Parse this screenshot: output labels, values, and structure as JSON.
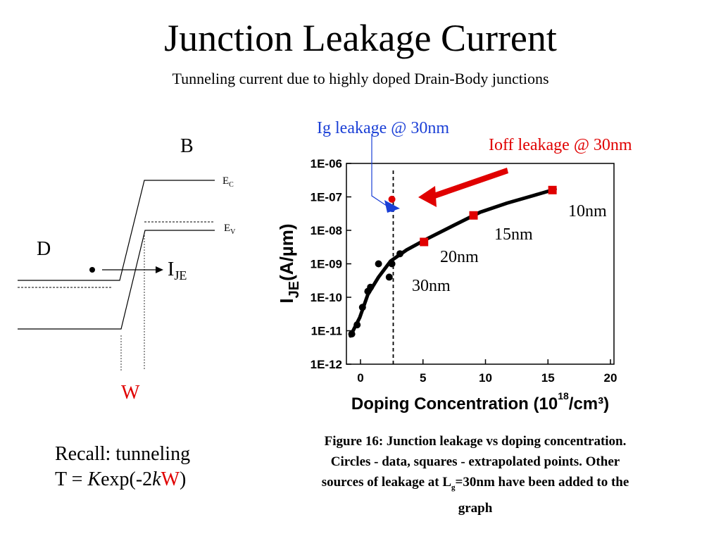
{
  "slide": {
    "title": "Junction Leakage Current",
    "subtitle": "Tunneling current due to highly doped Drain-Body junctions"
  },
  "band_diagram": {
    "label_b": "B",
    "label_d": "D",
    "label_ec": "E",
    "label_ec_sub": "C",
    "label_ev": "E",
    "label_ev_sub": "V",
    "label_current": "I",
    "label_current_sub": "JE",
    "label_w": "W",
    "w_color": "#e00000"
  },
  "recall": {
    "line1": "Recall: tunneling",
    "line2_prefix": "T = ",
    "line2_k": "K",
    "line2_mid": "exp(-2",
    "line2_k2": "k",
    "line2_w": "W",
    "line2_suffix": ")"
  },
  "chart_data": {
    "type": "scatter",
    "xlabel": "Doping Concentration (10",
    "xlabel_exp": "18",
    "xlabel_unit": "/cm³)",
    "ylabel": "I",
    "ylabel_sub": "JE",
    "ylabel_unit": "(A/µm)",
    "xlim": [
      0,
      20
    ],
    "ylim_log10": [
      -12,
      -6
    ],
    "x_ticks": [
      "0",
      "5",
      "10",
      "15",
      "20"
    ],
    "y_ticks": [
      "1E-12",
      "1E-11",
      "1E-10",
      "1E-09",
      "1E-08",
      "1E-07",
      "1E-06"
    ],
    "dashed_line_x": 3.5,
    "series": [
      {
        "marker": "circle",
        "color": "#000000",
        "points": [
          [
            0.4,
            8e-12
          ],
          [
            0.8,
            1.5e-11
          ],
          [
            1.2,
            5e-11
          ],
          [
            1.6,
            1.5e-10
          ],
          [
            1.8,
            2e-10
          ],
          [
            2.4,
            1e-09
          ],
          [
            3.2,
            4e-10
          ],
          [
            3.4,
            1e-09
          ],
          [
            4.0,
            2e-09
          ]
        ]
      },
      {
        "marker": "square",
        "color": "#e00000",
        "points": [
          [
            5.8,
            4.5e-09
          ],
          [
            9.5,
            2.8e-08
          ],
          [
            15.4,
            1.6e-07
          ]
        ]
      },
      {
        "marker": "circle",
        "color": "#e00000",
        "points": [
          [
            3.4,
            8.5e-08
          ]
        ]
      },
      {
        "marker": "circle",
        "color": "#1a3fd6",
        "points": [
          [
            3.4,
            4.5e-08
          ]
        ]
      }
    ],
    "fit_curve": [
      [
        0.3,
        7e-12
      ],
      [
        1.0,
        2.5e-11
      ],
      [
        1.6,
        1.2e-10
      ],
      [
        2.4,
        4e-10
      ],
      [
        3.3,
        1.2e-09
      ],
      [
        4.5,
        2.6e-09
      ],
      [
        6,
        5.5e-09
      ],
      [
        8,
        1.4e-08
      ],
      [
        10,
        3.5e-08
      ],
      [
        12,
        6.5e-08
      ],
      [
        14,
        1.1e-07
      ],
      [
        15.6,
        1.7e-07
      ]
    ],
    "annotations": [
      {
        "text": "Ig leakage @ 30nm",
        "color": "#1a3fd6"
      },
      {
        "text": "Ioff leakage @ 30nm",
        "color": "#e00000"
      },
      {
        "text": "10nm",
        "color": "#000000"
      },
      {
        "text": "15nm",
        "color": "#000000"
      },
      {
        "text": "20nm",
        "color": "#000000"
      },
      {
        "text": "30nm",
        "color": "#000000"
      }
    ]
  },
  "caption": {
    "line1": "Figure 16: Junction leakage vs doping concentration.",
    "line2": "Circles - data, squares - extrapolated points. Other",
    "line3_prefix": "sources of leakage at L",
    "line3_sub": "g",
    "line3_suffix": "=30nm have been added to the",
    "line4": "graph"
  }
}
